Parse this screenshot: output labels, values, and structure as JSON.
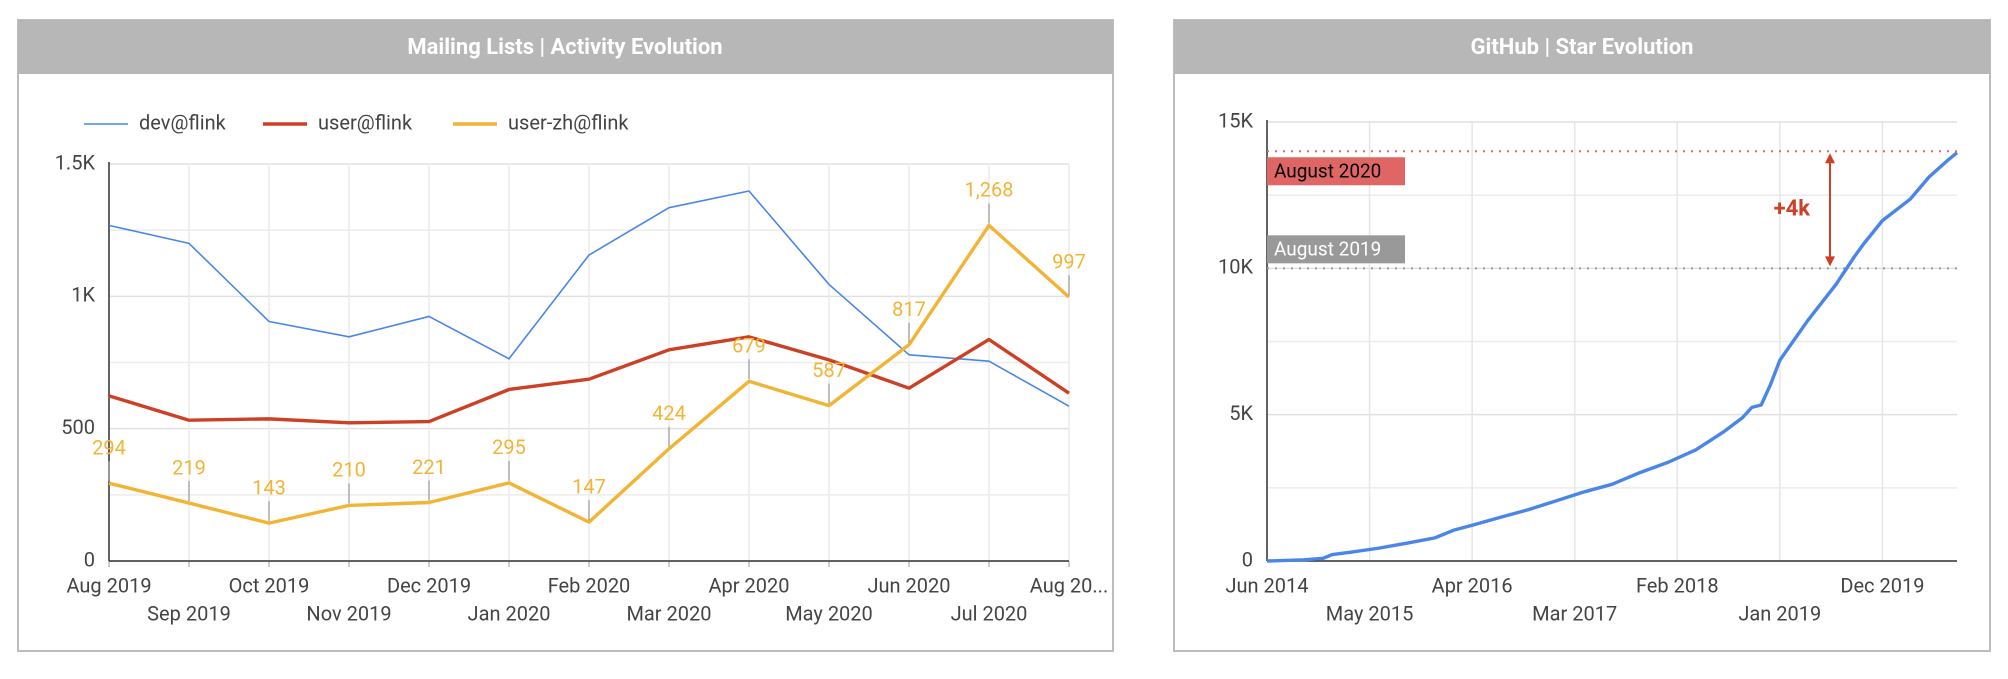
{
  "chart_data": [
    {
      "type": "line",
      "title": "Mailing Lists | Activity Evolution",
      "categories": [
        "Aug 2019",
        "Sep 2019",
        "Oct 2019",
        "Nov 2019",
        "Dec 2019",
        "Jan 2020",
        "Feb 2020",
        "Mar 2020",
        "Apr 2020",
        "May 2020",
        "Jun 2020",
        "Jul 2020",
        "Aug 20..."
      ],
      "series": [
        {
          "name": "dev@flink",
          "color": "#4a86e8",
          "values": [
            1268,
            1200,
            905,
            847,
            924,
            764,
            1156,
            1335,
            1398,
            1045,
            779,
            755,
            585
          ]
        },
        {
          "name": "user@flink",
          "color": "#cc4125",
          "values": [
            624,
            532,
            537,
            522,
            527,
            648,
            687,
            798,
            847,
            760,
            653,
            837,
            634
          ]
        },
        {
          "name": "user-zh@flink",
          "color": "#f1b435",
          "values": [
            294,
            219,
            143,
            210,
            221,
            295,
            147,
            424,
            679,
            587,
            817,
            1268,
            997
          ],
          "value_labels": [
            "294",
            "219",
            "143",
            "210",
            "221",
            "295",
            "147",
            "424",
            "679",
            "587",
            "817",
            "1,268",
            "997"
          ]
        }
      ],
      "ylim": [
        0,
        1500
      ],
      "yticks": [
        0,
        500,
        {
          "value": 1000,
          "label": "1K"
        },
        {
          "value": 1500,
          "label": "1.5K"
        }
      ],
      "minor_yticks": [
        250,
        750,
        1250
      ],
      "grid": true,
      "legend": "top"
    },
    {
      "type": "line",
      "title": "GitHub | Star Evolution",
      "x": [
        "Jun 2014",
        "Oct 2014",
        "Dec 2014",
        "Jan 2015",
        "Mar 2015",
        "Jun 2015",
        "Sep 2015",
        "Dec 2015",
        "Feb 2016",
        "Apr 2016",
        "Jul 2016",
        "Oct 2016",
        "Jan 2017",
        "Apr 2017",
        "Jul 2017",
        "Oct 2017",
        "Jan 2018",
        "Apr 2018",
        "Jul 2018",
        "Sep 2018",
        "Oct 2018",
        "Nov 2018",
        "Dec 2018",
        "Jan 2019",
        "Apr 2019",
        "Jul 2019",
        "Sep 2019",
        "Oct 2019",
        "Dec 2019",
        "Mar 2020",
        "May 2020",
        "Jul 2020",
        "Aug 2020"
      ],
      "series": [
        {
          "name": "Stars",
          "color": "#4a86e8",
          "values": [
            0,
            40,
            90,
            220,
            300,
            440,
            610,
            790,
            1050,
            1220,
            1490,
            1750,
            2055,
            2360,
            2620,
            3020,
            3370,
            3800,
            4420,
            4900,
            5250,
            5330,
            6030,
            6860,
            8220,
            9440,
            10400,
            10840,
            11630,
            12370,
            13120,
            13690,
            13950
          ]
        }
      ],
      "xlim": [
        "Jun 2014",
        "Aug 2020"
      ],
      "xticks": [
        "Jun 2014",
        "May 2015",
        "Apr 2016",
        "Mar 2017",
        "Feb 2018",
        "Jan 2019",
        "Dec 2019"
      ],
      "ylim": [
        0,
        15000
      ],
      "yticks": [
        0,
        {
          "value": 5000,
          "label": "5K"
        },
        {
          "value": 10000,
          "label": "10K"
        },
        {
          "value": 15000,
          "label": "15K"
        }
      ],
      "minor_yticks": [
        2500,
        7500,
        12500
      ],
      "grid": true,
      "reference_lines": [
        {
          "label": "August 2020",
          "value": 14000,
          "color": "#e06666"
        },
        {
          "label": "August 2019",
          "value": 10000,
          "color": "#999999"
        }
      ],
      "annotations": [
        {
          "text": "+4k",
          "from": 10000,
          "to": 14000,
          "color": "#cc4125"
        }
      ]
    }
  ]
}
